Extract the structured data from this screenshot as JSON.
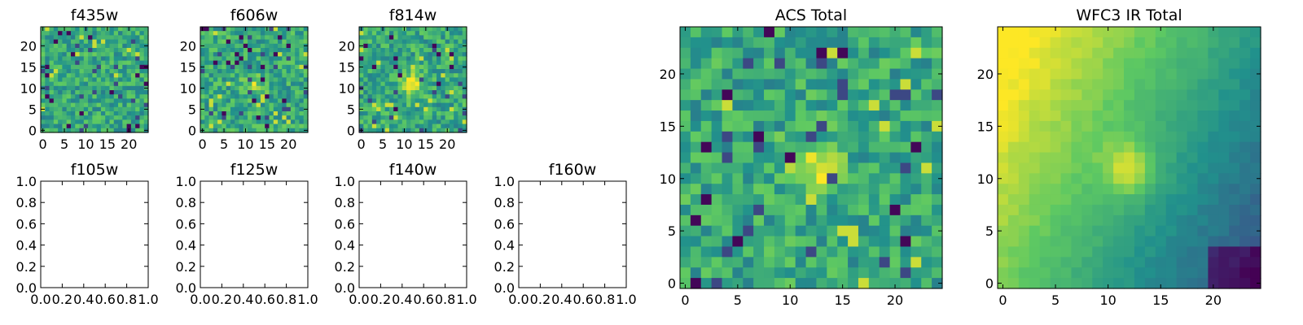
{
  "chart_data": [
    {
      "type": "heatmap",
      "title": "f435w",
      "xticks": [
        "0",
        "5",
        "10",
        "15",
        "20"
      ],
      "yticks": [
        "0",
        "5",
        "10",
        "15",
        "20"
      ],
      "xlim": [
        -0.5,
        24.5
      ],
      "ylim": [
        -0.5,
        24.5
      ],
      "grid": false,
      "pattern": "noise",
      "blob": 0.0
    },
    {
      "type": "heatmap",
      "title": "f606w",
      "xticks": [
        "0",
        "5",
        "10",
        "15",
        "20"
      ],
      "yticks": [
        "0",
        "5",
        "10",
        "15",
        "20"
      ],
      "xlim": [
        -0.5,
        24.5
      ],
      "ylim": [
        -0.5,
        24.5
      ],
      "grid": false,
      "pattern": "noise",
      "blob": 0.25
    },
    {
      "type": "heatmap",
      "title": "f814w",
      "xticks": [
        "0",
        "5",
        "10",
        "15",
        "20"
      ],
      "yticks": [
        "0",
        "5",
        "10",
        "15",
        "20"
      ],
      "xlim": [
        -0.5,
        24.5
      ],
      "ylim": [
        -0.5,
        24.5
      ],
      "grid": false,
      "pattern": "noise",
      "blob": 0.45
    },
    {
      "type": "empty",
      "title": "f105w",
      "xticks": [
        "0.0",
        "0.2",
        "0.4",
        "0.6",
        "0.8",
        "1.0"
      ],
      "yticks": [
        "0.0",
        "0.2",
        "0.4",
        "0.6",
        "0.8",
        "1.0"
      ],
      "xlim": [
        0,
        1
      ],
      "ylim": [
        0,
        1
      ],
      "grid": false
    },
    {
      "type": "empty",
      "title": "f125w",
      "xticks": [
        "0.0",
        "0.2",
        "0.4",
        "0.6",
        "0.8",
        "1.0"
      ],
      "yticks": [
        "0.0",
        "0.2",
        "0.4",
        "0.6",
        "0.8",
        "1.0"
      ],
      "xlim": [
        0,
        1
      ],
      "ylim": [
        0,
        1
      ],
      "grid": false
    },
    {
      "type": "empty",
      "title": "f140w",
      "xticks": [
        "0.0",
        "0.2",
        "0.4",
        "0.6",
        "0.8",
        "1.0"
      ],
      "yticks": [
        "0.0",
        "0.2",
        "0.4",
        "0.6",
        "0.8",
        "1.0"
      ],
      "xlim": [
        0,
        1
      ],
      "ylim": [
        0,
        1
      ],
      "grid": false
    },
    {
      "type": "empty",
      "title": "f160w",
      "xticks": [
        "0.0",
        "0.2",
        "0.4",
        "0.6",
        "0.8",
        "1.0"
      ],
      "yticks": [
        "0.0",
        "0.2",
        "0.4",
        "0.6",
        "0.8",
        "1.0"
      ],
      "xlim": [
        0,
        1
      ],
      "ylim": [
        0,
        1
      ],
      "grid": false
    },
    {
      "type": "heatmap",
      "title": "ACS Total",
      "xticks": [
        "0",
        "5",
        "10",
        "15",
        "20"
      ],
      "yticks": [
        "0",
        "5",
        "10",
        "15",
        "20"
      ],
      "xlim": [
        -0.5,
        24.5
      ],
      "ylim": [
        -0.5,
        24.5
      ],
      "grid": false,
      "pattern": "noise",
      "blob": 0.4
    },
    {
      "type": "heatmap",
      "title": "WFC3 IR Total",
      "xticks": [
        "0",
        "5",
        "10",
        "15",
        "20"
      ],
      "yticks": [
        "0",
        "5",
        "10",
        "15",
        "20"
      ],
      "xlim": [
        -0.5,
        24.5
      ],
      "ylim": [
        -0.5,
        24.5
      ],
      "grid": false,
      "pattern": "smooth",
      "blob": 0.3
    }
  ],
  "colormap": [
    "#440154",
    "#3b528b",
    "#21918c",
    "#5ec962",
    "#fde725"
  ]
}
